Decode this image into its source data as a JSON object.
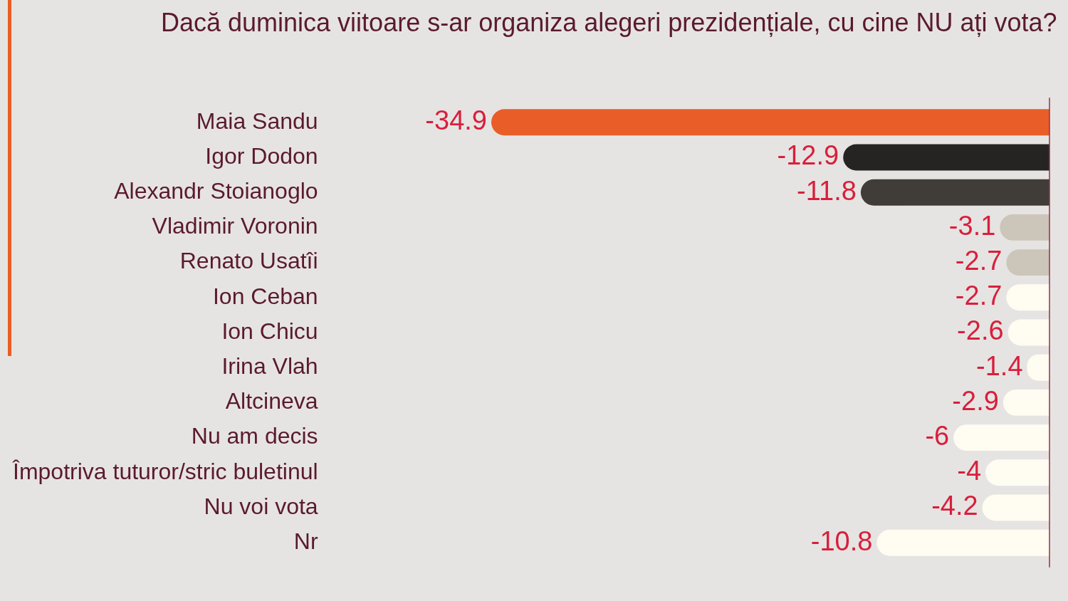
{
  "chart_data": {
    "type": "bar",
    "orientation": "horizontal",
    "title": "Dacă duminica viitoare s-ar organiza alegeri prezidențiale, cu cine NU ați vota?",
    "categories": [
      "Maia Sandu",
      "Igor Dodon",
      "Alexandr Stoianoglo",
      "Vladimir Voronin",
      "Renato Usatîi",
      "Ion Ceban",
      "Ion Chicu",
      "Irina Vlah",
      "Altcineva",
      "Nu am decis",
      "Împotriva tuturor/stric buletinul",
      "Nu voi vota",
      "Nr"
    ],
    "values": [
      -34.9,
      -12.9,
      -11.8,
      -3.1,
      -2.7,
      -2.7,
      -2.6,
      -1.4,
      -2.9,
      -6,
      -4,
      -4.2,
      -10.8
    ],
    "colors": [
      "#e95e28",
      "#252422",
      "#403d39",
      "#ccc5b9",
      "#ccc5b9",
      "#fffcf2",
      "#fffcf2",
      "#fffcf2",
      "#fffcf2",
      "#fffcf2",
      "#fffcf2",
      "#fffcf2",
      "#fffcf2"
    ],
    "data_labels": true
  }
}
